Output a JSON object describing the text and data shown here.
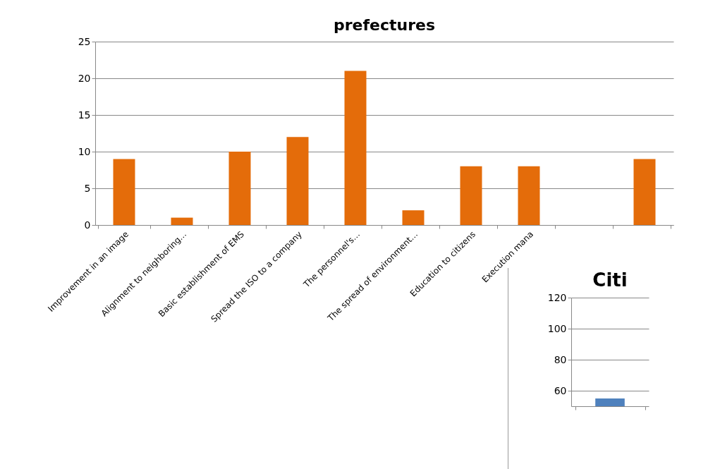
{
  "chart_data": [
    {
      "type": "bar",
      "title": "prefectures",
      "categories": [
        "Improvement in an image",
        "Alignment to neighboring...",
        "Basic establishment of EMS",
        "Spread the ISO to a company",
        "The personnel's...",
        "The spread of environment...",
        "Education to citizens",
        "Execution mana",
        null,
        null
      ],
      "series": [
        {
          "color": "#e46c0a",
          "values": [
            9,
            1,
            10,
            12,
            21,
            2,
            8,
            8,
            0,
            9
          ]
        }
      ],
      "ylim": [
        0,
        25
      ],
      "yticks": [
        0,
        5,
        10,
        15,
        20,
        25
      ],
      "grid": "y"
    },
    {
      "type": "bar",
      "title": "Citi",
      "categories": [
        null
      ],
      "series": [
        {
          "color": "#4f81bd",
          "values": [
            55
          ]
        }
      ],
      "ylim": [
        50,
        120
      ],
      "yticks": [
        60,
        80,
        100,
        120
      ],
      "grid": "y"
    }
  ]
}
